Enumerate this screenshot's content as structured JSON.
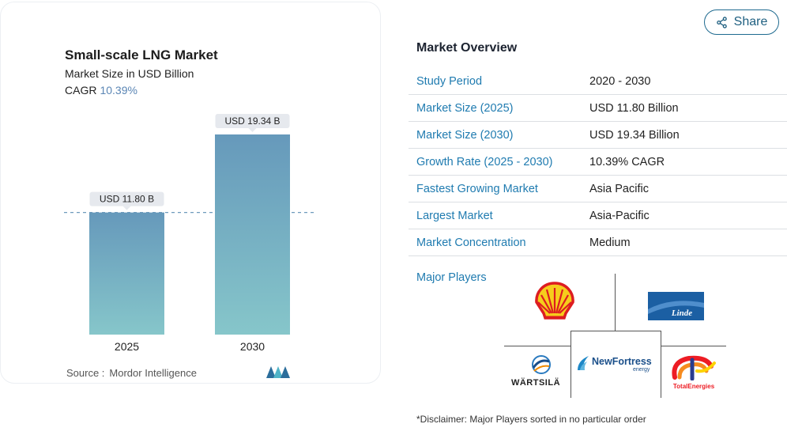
{
  "chart": {
    "title": "Small-scale LNG Market",
    "subtitle": "Market Size in USD Billion",
    "cagr_label": "CAGR",
    "cagr_value": "10.39%",
    "source_label": "Source :",
    "source_value": "Mordor Intelligence"
  },
  "chart_data": {
    "type": "bar",
    "categories": [
      "2025",
      "2030"
    ],
    "values": [
      11.8,
      19.34
    ],
    "data_labels": [
      "USD 11.80 B",
      "USD 19.34 B"
    ],
    "title": "Small-scale LNG Market",
    "ylabel": "Market Size in USD Billion",
    "ylim": [
      0,
      19.34
    ],
    "grid": false,
    "reference_line": 11.8,
    "colors": {
      "bar_top": "#6699bb",
      "bar_bottom": "#86c6ca"
    }
  },
  "share": {
    "label": "Share",
    "icon": "share-icon"
  },
  "overview": {
    "title": "Market Overview",
    "rows": [
      {
        "key": "Study Period",
        "value": "2020 - 2030"
      },
      {
        "key": "Market Size (2025)",
        "value": "USD 11.80 Billion"
      },
      {
        "key": "Market Size (2030)",
        "value": "USD 19.34 Billion"
      },
      {
        "key": "Growth Rate (2025 - 2030)",
        "value": "10.39% CAGR"
      },
      {
        "key": "Fastest Growing Market",
        "value": "Asia Pacific"
      },
      {
        "key": "Largest Market",
        "value": "Asia-Pacific"
      },
      {
        "key": "Market Concentration",
        "value": "Medium"
      }
    ],
    "players_label": "Major Players",
    "players": {
      "linde": "Linde",
      "wartsila": "WÄRTSILÄ",
      "newfortress": "NewFortress",
      "newfortress_sub": "energy",
      "total": "TotalEnergies"
    },
    "disclaimer": "*Disclaimer: Major Players sorted in no particular order"
  },
  "colors": {
    "accent": "#1f7bb0",
    "bar_top": "#6699bb",
    "bar_bottom": "#86c6ca"
  }
}
